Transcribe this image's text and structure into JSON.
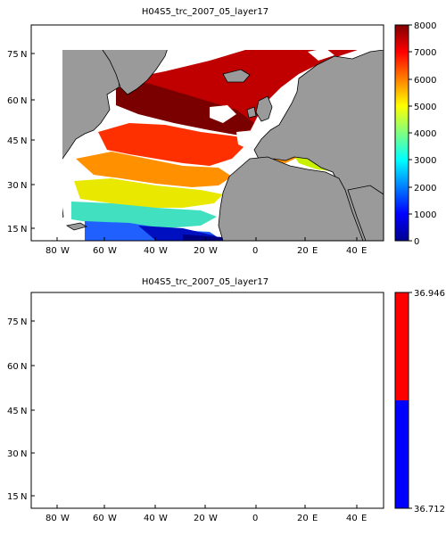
{
  "panels": [
    {
      "title": "H04S5_trc_2007_05_layer17",
      "colorbar": {
        "type": "continuous",
        "ticks": [
          "8000",
          "7000",
          "6000",
          "5000",
          "4000",
          "3000",
          "2000",
          "1000",
          "0"
        ],
        "range": [
          0,
          8000
        ]
      },
      "lat_ticks": [
        "75",
        "60",
        "45",
        "30",
        "15"
      ],
      "lon_ticks": [
        "80",
        "60",
        "40",
        "20",
        "0",
        "20",
        "40"
      ],
      "lon_hemis": [
        "W",
        "W",
        "W",
        "W",
        "",
        "E",
        "E"
      ]
    },
    {
      "title": "H04S5_trc_2007_05_layer17",
      "colorbar": {
        "type": "two-level",
        "top_label": "36.946",
        "bottom_label": "36.712",
        "colors": [
          "#ff0000",
          "#0000ff"
        ]
      },
      "lat_ticks": [
        "75",
        "60",
        "45",
        "30",
        "15"
      ],
      "lon_ticks": [
        "80",
        "60",
        "40",
        "20",
        "0",
        "20",
        "40"
      ],
      "lon_hemis": [
        "W",
        "W",
        "W",
        "W",
        "",
        "E",
        "E"
      ]
    }
  ],
  "lat_suffix": "N",
  "colors": {
    "land": "#9a9a9a",
    "nodata": "#ffffff"
  }
}
